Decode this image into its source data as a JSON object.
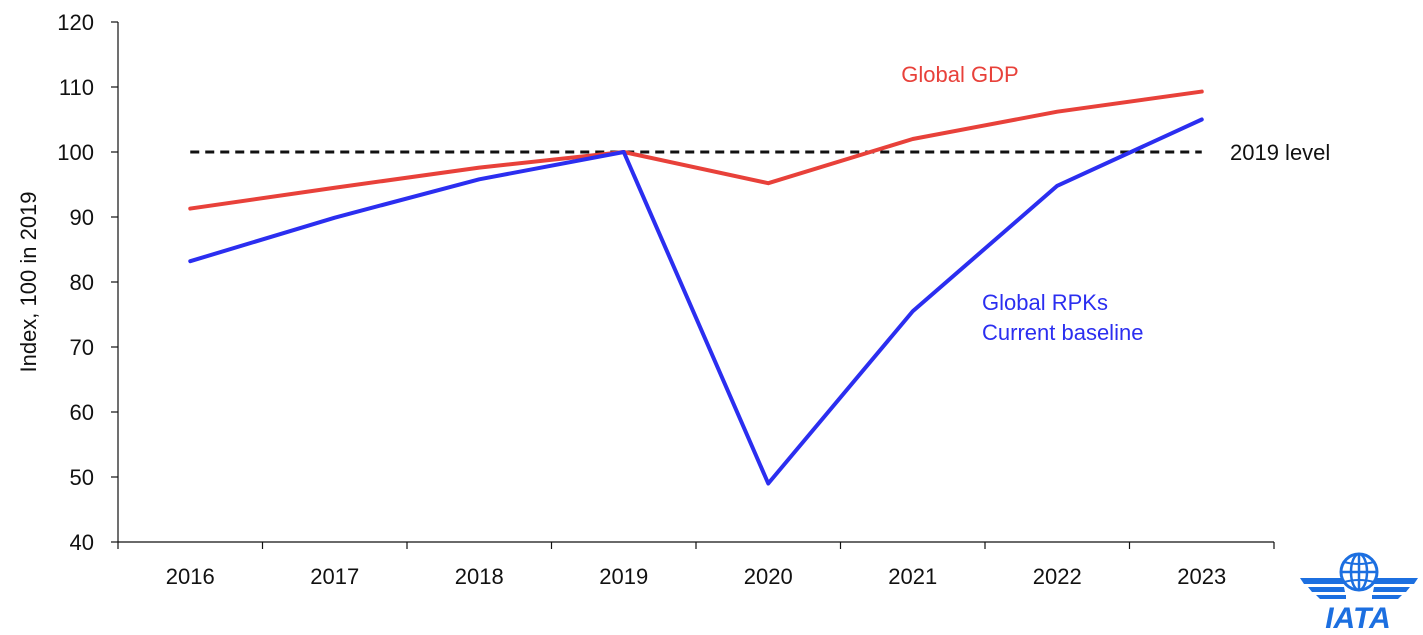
{
  "chart_data": {
    "type": "line",
    "title": "",
    "xlabel": "",
    "ylabel": "Index, 100 in 2019",
    "ylim": [
      40,
      120
    ],
    "yticks": [
      40,
      50,
      60,
      70,
      80,
      90,
      100,
      110,
      120
    ],
    "categories": [
      "2016",
      "2017",
      "2018",
      "2019",
      "2020",
      "2021",
      "2022",
      "2023"
    ],
    "grid": false,
    "series": [
      {
        "name": "Global GDP",
        "color": "#e8413a",
        "values": [
          91.3,
          94.5,
          97.6,
          100.0,
          95.2,
          102.0,
          106.2,
          109.3
        ]
      },
      {
        "name": "Global RPKs\nCurrent baseline",
        "color": "#2b2ef0",
        "values": [
          83.2,
          89.9,
          95.8,
          100.0,
          49.0,
          75.5,
          94.8,
          105.0
        ]
      }
    ],
    "reference_line": {
      "label": "2019 level",
      "value": 100,
      "color": "#111111",
      "style": "dashed"
    }
  },
  "logo": {
    "text": "IATA",
    "color": "#1c6fe0",
    "icon": "globe-wings-icon"
  }
}
